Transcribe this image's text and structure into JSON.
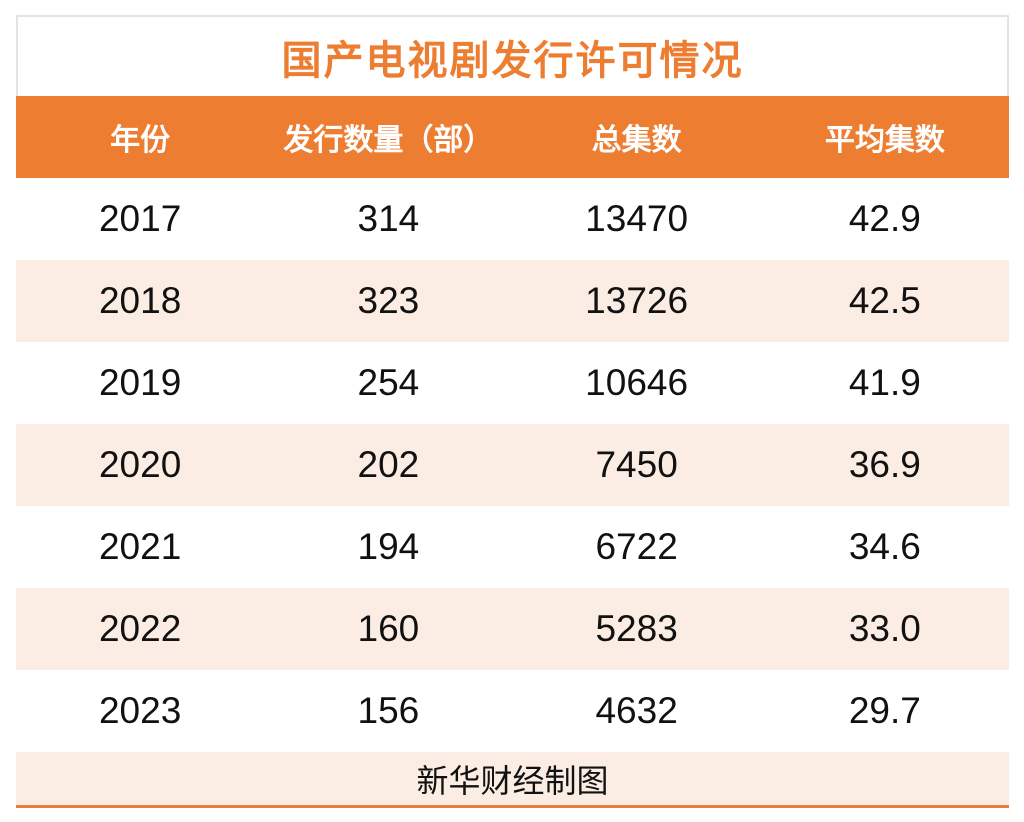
{
  "colors": {
    "accent": "#ED7D31",
    "stripe": "#FBEDE3",
    "title_text": "#ED7D31",
    "header_text": "#FFFFFF",
    "body_text": "#111111",
    "bottom_line": "#E8803A"
  },
  "title": "国产电视剧发行许可情况",
  "source_note": "新华财经制图",
  "chart_data": {
    "type": "table",
    "title": "国产电视剧发行许可情况",
    "columns": [
      "年份",
      "发行数量（部）",
      "总集数",
      "平均集数"
    ],
    "rows": [
      [
        "2017",
        "314",
        "13470",
        "42.9"
      ],
      [
        "2018",
        "323",
        "13726",
        "42.5"
      ],
      [
        "2019",
        "254",
        "10646",
        "41.9"
      ],
      [
        "2020",
        "202",
        "7450",
        "36.9"
      ],
      [
        "2021",
        "194",
        "6722",
        "34.6"
      ],
      [
        "2022",
        "160",
        "5283",
        "33.0"
      ],
      [
        "2023",
        "156",
        "4632",
        "29.7"
      ]
    ],
    "source_note": "新华财经制图",
    "layout": {
      "stripe_pattern": "alternating white / light-orange starting white",
      "header_style": "solid orange band, white bold text",
      "columns_equal_width": true
    }
  }
}
